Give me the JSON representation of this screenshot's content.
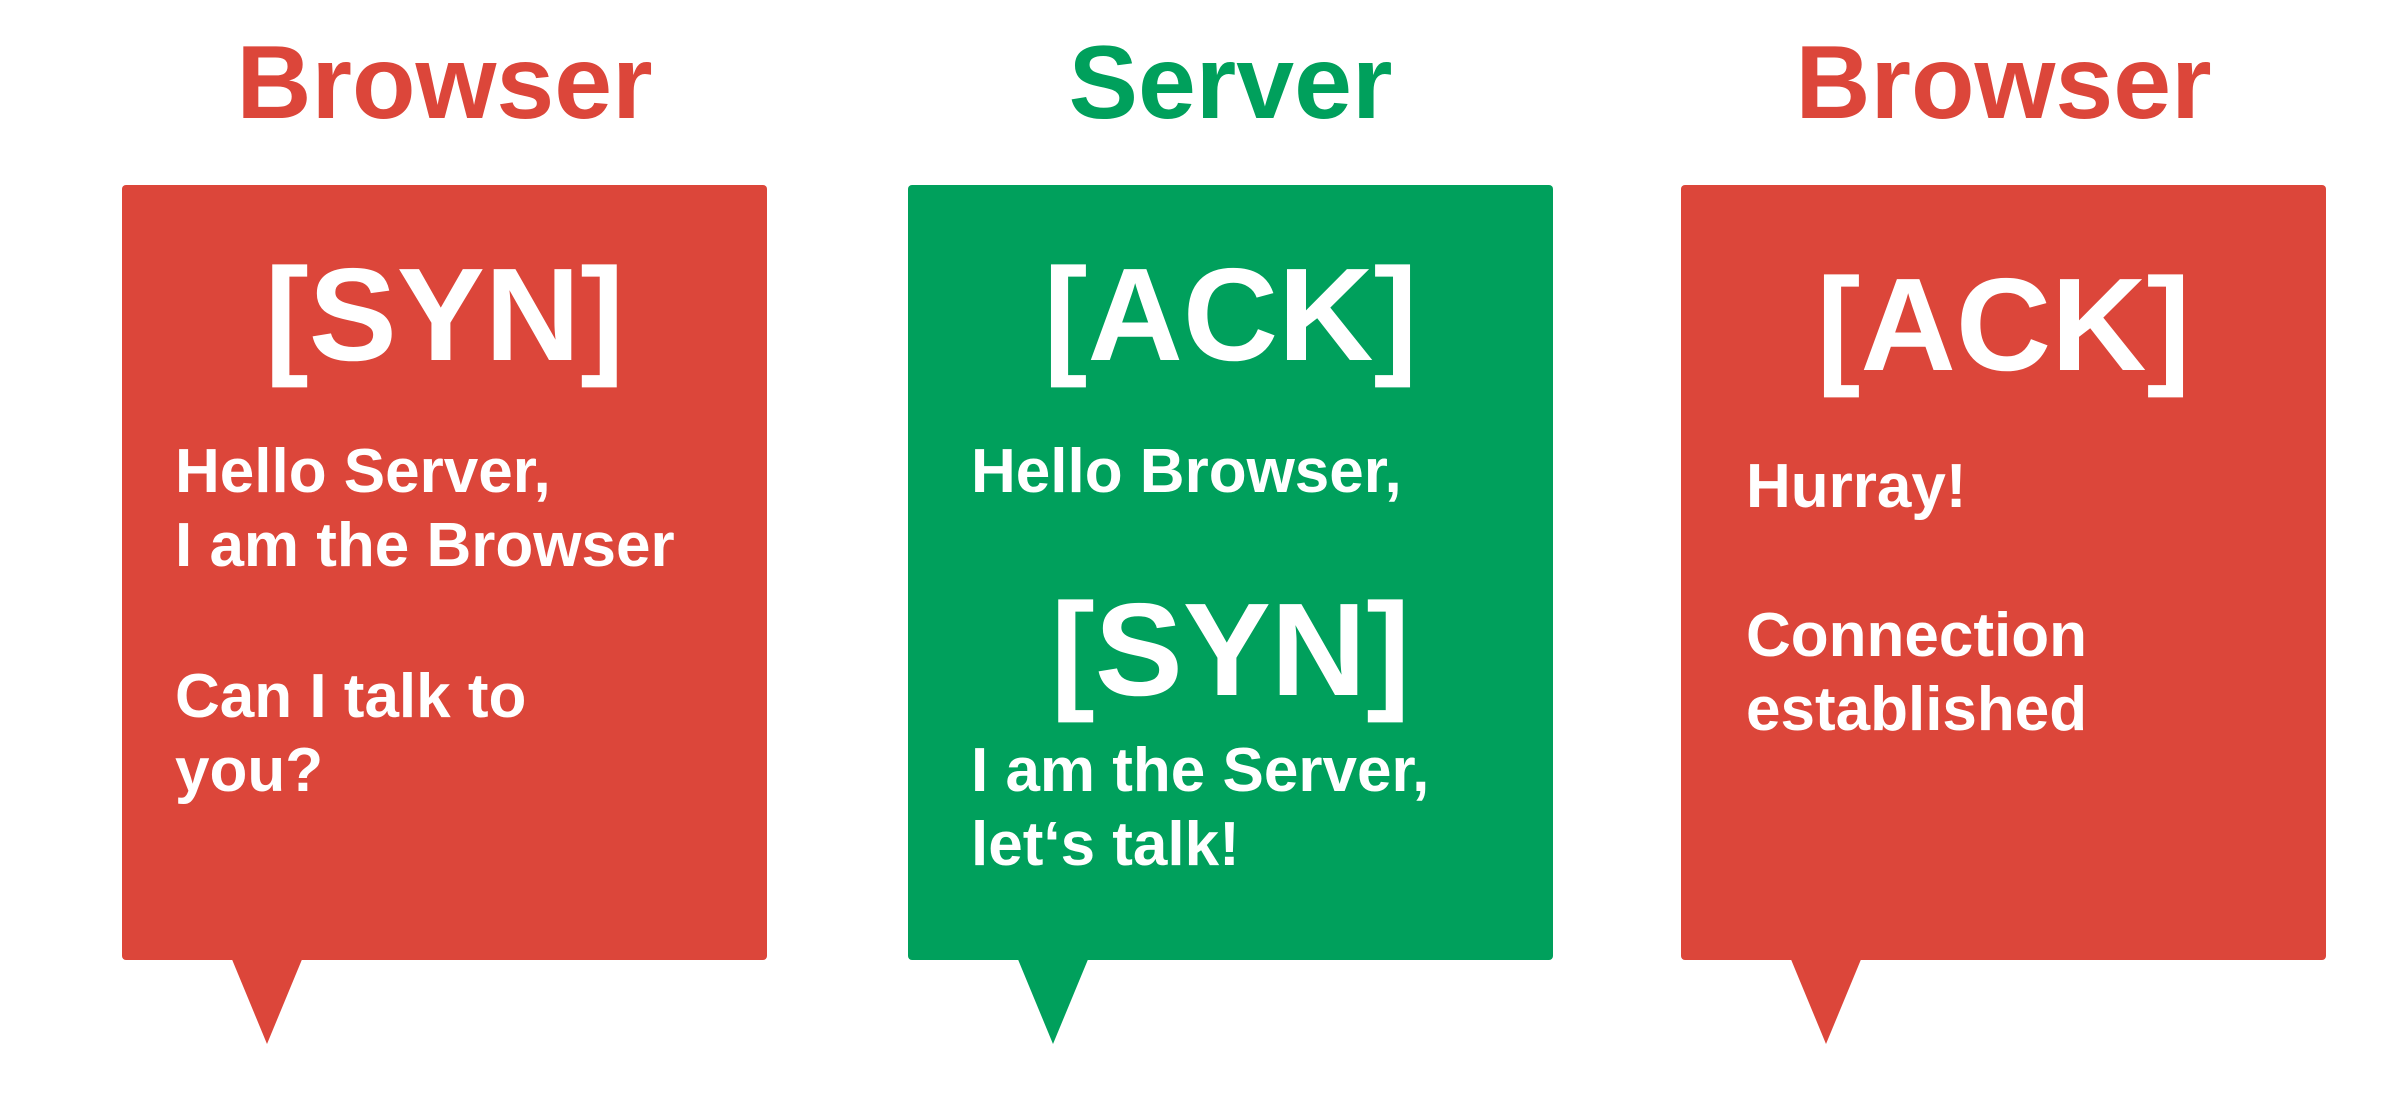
{
  "colors": {
    "browser": "#dc463a",
    "server": "#00a05c",
    "text": "#ffffff"
  },
  "steps": [
    {
      "title": "Browser",
      "tag": "[SYN]",
      "lines": [
        "Hello Server,",
        "I am the Browser",
        "Can I talk to",
        "you?"
      ]
    },
    {
      "title": "Server",
      "tag_ack": "[ACK]",
      "greeting": "Hello Browser,",
      "tag_syn": "[SYN]",
      "lines": [
        "I am the Server,",
        "let‘s talk!"
      ]
    },
    {
      "title": "Browser",
      "tag": "[ACK]",
      "lines": [
        "Hurray!",
        "Connection",
        "established"
      ]
    }
  ]
}
